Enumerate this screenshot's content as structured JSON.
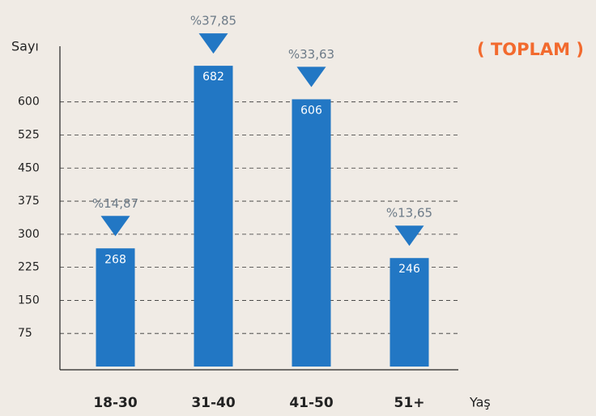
{
  "chart_data": {
    "type": "bar",
    "title": "( TOPLAM )",
    "y_label": "Sayı",
    "x_label": "Yaş",
    "categories": [
      "18-30",
      "31-40",
      "41-50",
      "51+"
    ],
    "values": [
      268,
      682,
      606,
      246
    ],
    "annotations": [
      "%14,87",
      "%37,85",
      "%33,63",
      "%13,65"
    ],
    "color": "#2277c4",
    "ylim": [
      0,
      730
    ],
    "yticks": [
      75,
      150,
      225,
      300,
      375,
      450,
      525,
      600
    ],
    "grid": true
  }
}
